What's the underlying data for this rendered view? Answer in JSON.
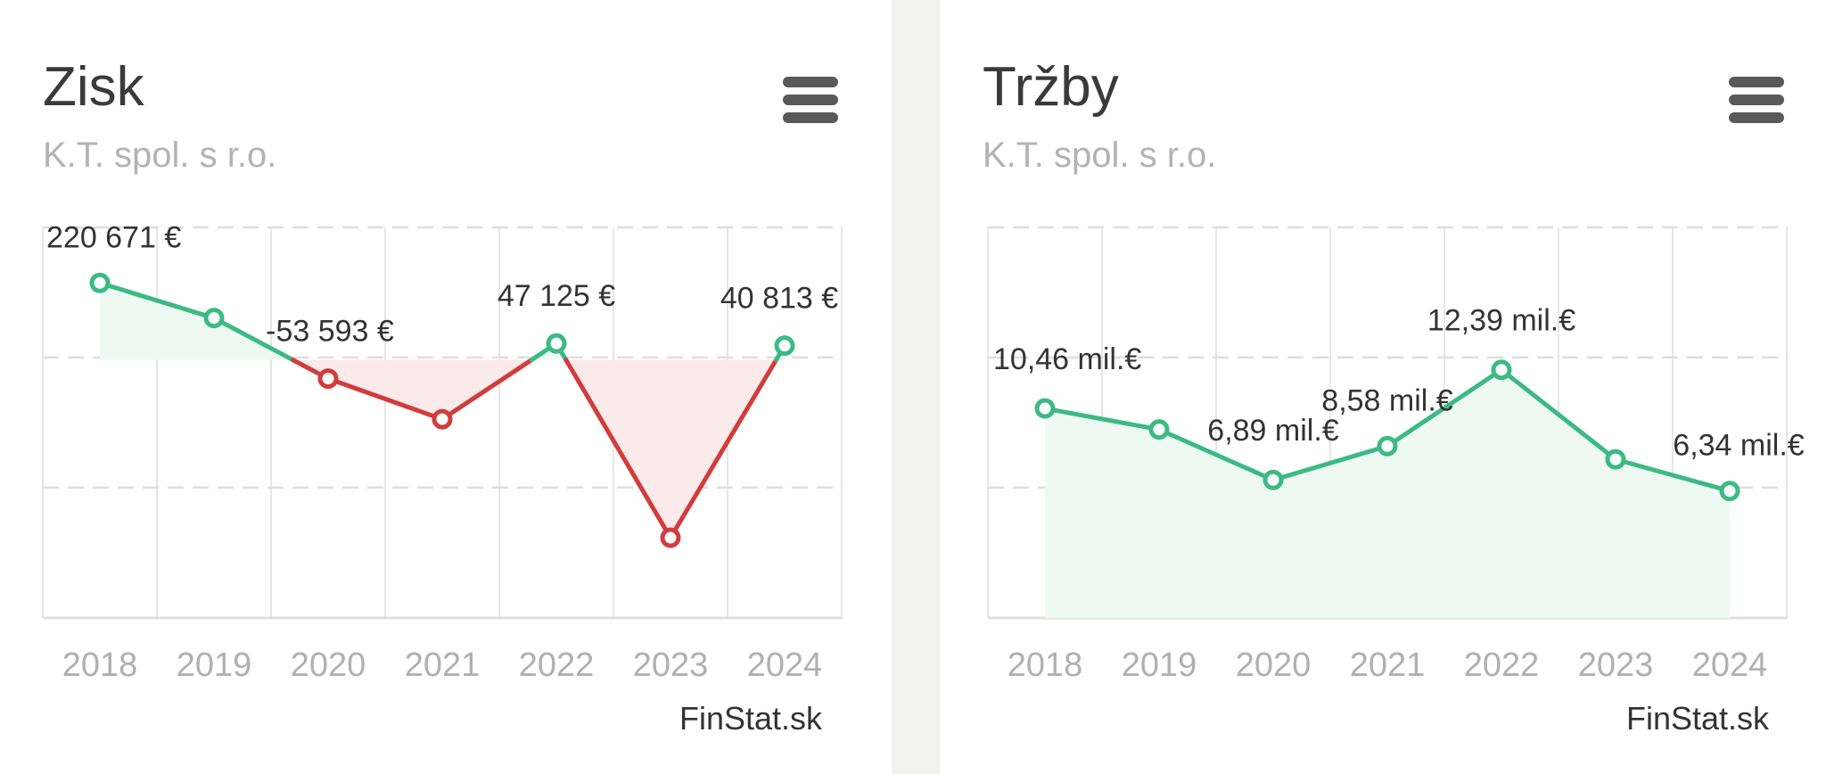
{
  "charts": [
    {
      "title": "Zisk",
      "subtitle": "K.T. spol. s r.o.",
      "credit": "FinStat.sk",
      "menu_icon": "hamburger-menu-icon",
      "colors": {
        "positive": "#3cba84",
        "negative": "#d23c3c",
        "positive_fill": "#eef9f3",
        "negative_fill": "#fbeaea"
      },
      "chart_data": {
        "type": "area",
        "categories": [
          "2018",
          "2019",
          "2020",
          "2021",
          "2022",
          "2023",
          "2024"
        ],
        "values": [
          220671,
          120000,
          -53593,
          -170000,
          47125,
          -510000,
          40813
        ],
        "data_labels": [
          "220 671 €",
          "",
          "-53 593 €",
          "",
          "47 125 €",
          "",
          "40 813 €"
        ],
        "ylim": [
          -740000,
          380000
        ],
        "xlabel": "",
        "ylabel": "",
        "grid": true
      }
    },
    {
      "title": "Tržby",
      "subtitle": "K.T. spol. s r.o.",
      "credit": "FinStat.sk",
      "menu_icon": "hamburger-menu-icon",
      "colors": {
        "positive": "#3cba84",
        "positive_fill": "#eef9f3"
      },
      "chart_data": {
        "type": "area",
        "categories": [
          "2018",
          "2019",
          "2020",
          "2021",
          "2022",
          "2023",
          "2024"
        ],
        "values": [
          10.46,
          9.41,
          6.89,
          8.58,
          12.39,
          7.92,
          6.34
        ],
        "data_labels": [
          "10,46 mil.€",
          "",
          "6,89 mil.€",
          "8,58 mil.€",
          "12,39 mil.€",
          "",
          "6,34 mil.€"
        ],
        "ylim": [
          0,
          19.5
        ],
        "xlabel": "",
        "ylabel": "",
        "grid": true
      }
    }
  ]
}
